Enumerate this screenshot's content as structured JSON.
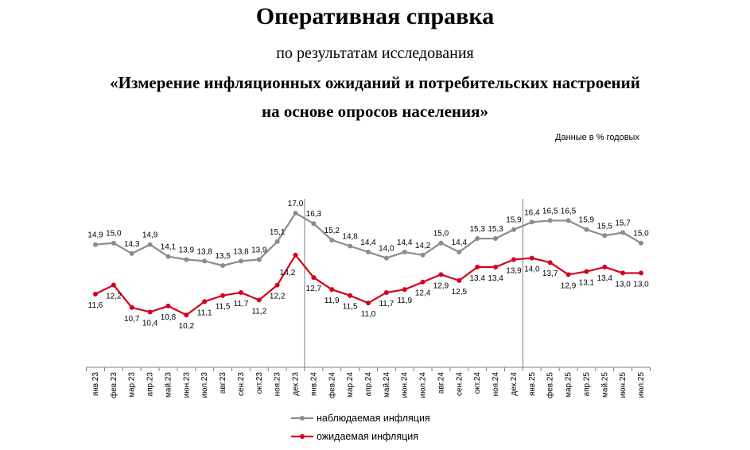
{
  "header": {
    "title": "Оперативная справка",
    "subtitle": "по результатам исследования",
    "subtitle_line2": "«Измерение инфляционных ожиданий и потребительских настроений",
    "subtitle_line3": "на основе опросов населения»"
  },
  "units_note": "Данные в % годовых",
  "colors": {
    "observed": "#8c8c8c",
    "expected": "#d5001c",
    "divider": "#7f7f7f"
  },
  "chart_data": {
    "type": "line",
    "categories": [
      "янв.23",
      "фев.23",
      "мар.23",
      "апр.23",
      "май.23",
      "июн.23",
      "июл.23",
      "авг.23",
      "сен.23",
      "окт.23",
      "ноя.23",
      "дек.23",
      "янв.24",
      "фев.24",
      "мар.24",
      "апр.24",
      "май.24",
      "июн.24",
      "июл.24",
      "авг.24",
      "сен.24",
      "окт.24",
      "ноя.24",
      "дек.24",
      "янв.25",
      "фев.25",
      "мар.25",
      "апр.25",
      "май.25",
      "июн.25",
      "июл.25"
    ],
    "series": [
      {
        "name": "наблюдаемая инфляция",
        "values": [
          14.9,
          15.0,
          14.3,
          14.9,
          14.1,
          13.9,
          13.8,
          13.5,
          13.8,
          13.9,
          15.1,
          17.0,
          16.3,
          15.2,
          14.8,
          14.4,
          14.0,
          14.4,
          14.2,
          15.0,
          14.4,
          15.3,
          15.3,
          15.9,
          16.4,
          16.5,
          16.5,
          15.9,
          15.5,
          15.7,
          15.0
        ]
      },
      {
        "name": "ожидаемая инфляция",
        "values": [
          11.6,
          12.2,
          10.7,
          10.4,
          10.8,
          10.2,
          11.1,
          11.5,
          11.7,
          11.2,
          12.2,
          14.2,
          12.7,
          11.9,
          11.5,
          11.0,
          11.7,
          11.9,
          12.4,
          12.9,
          12.5,
          13.4,
          13.4,
          13.9,
          14.0,
          13.7,
          12.9,
          13.1,
          13.4,
          13.0,
          13.0
        ]
      }
    ],
    "year_dividers_after": [
      "дек.23",
      "дек.24"
    ],
    "legend_position": "bottom-center",
    "grid": false
  }
}
